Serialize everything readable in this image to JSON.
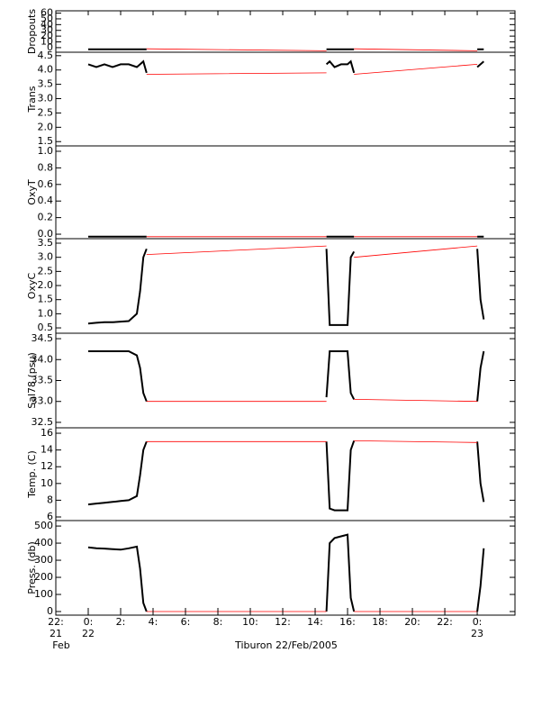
{
  "x_axis": {
    "label": "Tiburon 22/Feb/2005",
    "xlim": [
      -2,
      26.33
    ],
    "xticks": [
      {
        "value": -2,
        "label": "22:"
      },
      {
        "value": 0,
        "label": "0:"
      },
      {
        "value": 2,
        "label": "2:"
      },
      {
        "value": 4,
        "label": "4:"
      },
      {
        "value": 6,
        "label": "6:"
      },
      {
        "value": 8,
        "label": "8:"
      },
      {
        "value": 10,
        "label": "10:"
      },
      {
        "value": 12,
        "label": "12:"
      },
      {
        "value": 14,
        "label": "14:"
      },
      {
        "value": 16,
        "label": "16:"
      },
      {
        "value": 18,
        "label": "18:"
      },
      {
        "value": 20,
        "label": "20:"
      },
      {
        "value": 22,
        "label": "22:"
      },
      {
        "value": 24,
        "label": "0:"
      }
    ],
    "date_labels": [
      {
        "value": -2,
        "label": "21"
      },
      {
        "value": 0,
        "label": "22"
      },
      {
        "value": 24,
        "label": "23"
      }
    ],
    "month_labels": [
      {
        "value": -2,
        "label": "Feb"
      }
    ]
  },
  "chart_data": [
    {
      "type": "line",
      "ylabel": "Dropouts",
      "ylim": [
        -8,
        64
      ],
      "yticks": [
        0,
        10,
        20,
        30,
        40,
        50,
        60
      ],
      "series": [
        {
          "color": "#000000",
          "x": [
            0,
            0.5,
            1,
            1.5,
            2,
            2.5,
            3,
            3.2,
            3.4,
            3.6,
            9,
            14.7,
            14.9,
            15.2,
            15.6,
            16,
            16.2,
            16.4,
            20,
            24,
            24.2,
            24.4
          ],
          "values": [
            -3,
            -3,
            -3,
            -3,
            -3,
            -3,
            -3,
            -3,
            -3,
            -3,
            null,
            -3,
            -3,
            -3,
            -3,
            -3,
            -3,
            -3,
            null,
            -3,
            -3,
            -3
          ]
        },
        {
          "color": "#ff0000",
          "x": [
            3.6,
            14.7,
            15.5,
            16.4,
            24
          ],
          "values": [
            -2,
            -5.5,
            null,
            -2,
            -5.5
          ]
        }
      ]
    },
    {
      "type": "line",
      "ylabel": "Trans",
      "ylim": [
        1.35,
        4.62
      ],
      "yticks": [
        1.5,
        {
          "value": 2,
          "label": "2.0"
        },
        2.5,
        {
          "value": 3,
          "label": "3.0"
        },
        3.5,
        {
          "value": 4,
          "label": "4.0"
        },
        4.5
      ],
      "series": [
        {
          "color": "#000000",
          "x": [
            0,
            0.5,
            1,
            1.5,
            2,
            2.5,
            3,
            3.2,
            3.4,
            3.6,
            9,
            14.7,
            14.9,
            15.2,
            15.6,
            16,
            16.2,
            16.4,
            20,
            24,
            24.2,
            24.4
          ],
          "values": [
            4.2,
            4.1,
            4.2,
            4.1,
            4.2,
            4.2,
            4.1,
            4.2,
            4.3,
            3.9,
            null,
            4.2,
            4.3,
            4.1,
            4.2,
            4.2,
            4.3,
            3.9,
            null,
            4.1,
            4.2,
            4.3
          ]
        },
        {
          "color": "#ff0000",
          "x": [
            3.6,
            14.7,
            15.5,
            16.4,
            24
          ],
          "values": [
            3.85,
            3.9,
            null,
            3.85,
            4.2
          ]
        }
      ]
    },
    {
      "type": "line",
      "ylabel": "OxyT",
      "ylim": [
        -0.054,
        1.065
      ],
      "yticks": [
        {
          "value": 0,
          "label": "0.0"
        },
        0.2,
        0.4,
        0.6,
        0.8,
        {
          "value": 1,
          "label": "1.0"
        }
      ],
      "series": [
        {
          "color": "#000000",
          "x": [
            0,
            0.5,
            1,
            1.5,
            2,
            2.5,
            3,
            3.2,
            3.4,
            3.6,
            9,
            14.7,
            14.9,
            15.2,
            15.6,
            16,
            16.2,
            16.4,
            20,
            24,
            24.2,
            24.4
          ],
          "values": [
            -0.03,
            -0.03,
            -0.03,
            -0.03,
            -0.03,
            -0.03,
            -0.03,
            -0.03,
            -0.03,
            -0.03,
            null,
            -0.03,
            -0.03,
            -0.03,
            -0.03,
            -0.03,
            -0.03,
            -0.03,
            null,
            -0.03,
            -0.03,
            -0.03
          ]
        },
        {
          "color": "#ff0000",
          "x": [
            3.6,
            14.7,
            15.5,
            16.4,
            24
          ],
          "values": [
            -0.03,
            -0.03,
            null,
            -0.03,
            -0.03
          ]
        }
      ]
    },
    {
      "type": "line",
      "ylabel": "OxyC",
      "ylim": [
        0.31,
        3.66
      ],
      "yticks": [
        0.5,
        {
          "value": 1,
          "label": "1.0"
        },
        1.5,
        {
          "value": 2,
          "label": "2.0"
        },
        2.5,
        {
          "value": 3,
          "label": "3.0"
        },
        3.5
      ],
      "series": [
        {
          "color": "#000000",
          "x": [
            0,
            0.5,
            1,
            1.5,
            2,
            2.5,
            3,
            3.2,
            3.4,
            3.6,
            9,
            14.7,
            14.9,
            15.2,
            15.6,
            16,
            16.2,
            16.4,
            20,
            24,
            24.2,
            24.4
          ],
          "values": [
            0.65,
            0.68,
            0.7,
            0.7,
            0.72,
            0.74,
            1.0,
            1.8,
            3.0,
            3.3,
            null,
            3.3,
            0.6,
            0.6,
            0.6,
            0.6,
            3.0,
            3.2,
            null,
            3.3,
            1.5,
            0.8
          ]
        },
        {
          "color": "#ff0000",
          "x": [
            3.6,
            14.7,
            15.5,
            16.4,
            24
          ],
          "values": [
            3.1,
            3.4,
            null,
            3.0,
            3.4
          ]
        }
      ]
    },
    {
      "type": "line",
      "ylabel": "Sal78 (psu)",
      "ylim": [
        32.37,
        34.63
      ],
      "yticks": [
        32.5,
        {
          "value": 33,
          "label": "33.0"
        },
        33.5,
        {
          "value": 34,
          "label": "34.0"
        },
        34.5
      ],
      "series": [
        {
          "color": "#000000",
          "x": [
            0,
            0.5,
            1,
            1.5,
            2,
            2.5,
            3,
            3.2,
            3.4,
            3.6,
            9,
            14.7,
            14.9,
            15.2,
            15.6,
            16,
            16.2,
            16.4,
            20,
            24,
            24.2,
            24.4
          ],
          "values": [
            34.2,
            34.2,
            34.2,
            34.2,
            34.2,
            34.2,
            34.1,
            33.8,
            33.2,
            33.0,
            null,
            33.1,
            34.2,
            34.2,
            34.2,
            34.2,
            33.2,
            33.05,
            null,
            33.0,
            33.8,
            34.2
          ]
        },
        {
          "color": "#ff0000",
          "x": [
            3.6,
            14.7,
            15.5,
            16.4,
            24
          ],
          "values": [
            33.0,
            33.0,
            null,
            33.05,
            33.0
          ]
        }
      ]
    },
    {
      "type": "line",
      "ylabel": "Temp. (C)",
      "ylim": [
        5.57,
        16.65
      ],
      "yticks": [
        6,
        8,
        10,
        12,
        14,
        16
      ],
      "series": [
        {
          "color": "#000000",
          "x": [
            0,
            0.5,
            1,
            1.5,
            2,
            2.5,
            3,
            3.2,
            3.4,
            3.6,
            9,
            14.7,
            14.9,
            15.2,
            15.6,
            16,
            16.2,
            16.4,
            20,
            24,
            24.2,
            24.4
          ],
          "values": [
            7.5,
            7.6,
            7.7,
            7.8,
            7.9,
            8.0,
            8.5,
            11,
            14,
            15,
            null,
            15,
            7,
            6.8,
            6.8,
            6.8,
            14,
            15.1,
            null,
            15,
            10,
            7.8
          ]
        },
        {
          "color": "#ff0000",
          "x": [
            3.6,
            14.7,
            15.5,
            16.4,
            24
          ],
          "values": [
            15,
            15,
            null,
            15.1,
            14.9
          ]
        }
      ]
    },
    {
      "type": "line",
      "ylabel": "Press. (db)",
      "ylim": [
        -21,
        532
      ],
      "yticks": [
        0,
        100,
        200,
        300,
        400,
        500
      ],
      "series": [
        {
          "color": "#000000",
          "x": [
            0,
            0.5,
            1,
            1.5,
            2,
            2.5,
            3,
            3.2,
            3.4,
            3.6,
            9,
            14.7,
            14.9,
            15.2,
            15.6,
            16,
            16.2,
            16.4,
            20,
            24,
            24.2,
            24.4
          ],
          "values": [
            375,
            370,
            368,
            365,
            362,
            370,
            380,
            250,
            50,
            0,
            null,
            0,
            400,
            430,
            440,
            450,
            80,
            0,
            null,
            0,
            150,
            370
          ]
        },
        {
          "color": "#ff0000",
          "x": [
            3.6,
            14.7,
            15.5,
            16.4,
            24
          ],
          "values": [
            0,
            0,
            null,
            0,
            0
          ]
        }
      ]
    }
  ]
}
